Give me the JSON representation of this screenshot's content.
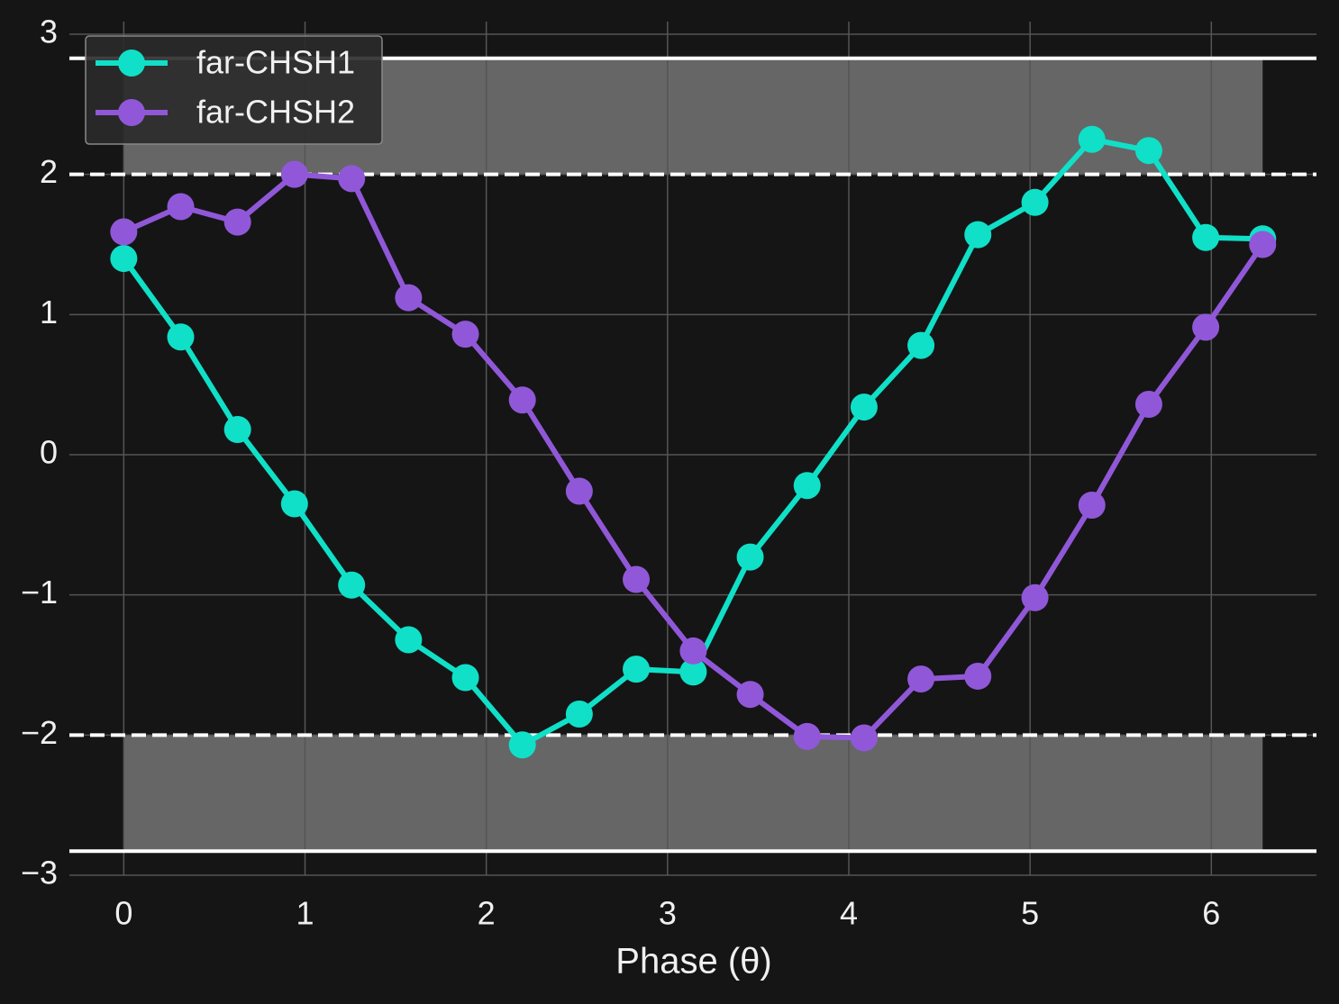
{
  "chart_data": {
    "type": "line",
    "x_label": "Phase (θ)",
    "x": [
      0,
      0.314,
      0.628,
      0.942,
      1.257,
      1.571,
      1.885,
      2.199,
      2.513,
      2.827,
      3.142,
      3.456,
      3.77,
      4.084,
      4.398,
      4.712,
      5.027,
      5.341,
      5.655,
      5.969,
      6.283
    ],
    "series": [
      {
        "name": "far-CHSH1",
        "color": "#10e0c8",
        "values": [
          1.4,
          0.84,
          0.18,
          -0.35,
          -0.93,
          -1.32,
          -1.59,
          -2.07,
          -1.85,
          -1.53,
          -1.55,
          -0.73,
          -0.22,
          0.34,
          0.78,
          1.57,
          1.8,
          2.25,
          2.17,
          1.55,
          1.54
        ]
      },
      {
        "name": "far-CHSH2",
        "color": "#9058d8",
        "values": [
          1.59,
          1.77,
          1.66,
          2.0,
          1.97,
          1.12,
          0.86,
          0.39,
          -0.26,
          -0.89,
          -1.4,
          -1.71,
          -2.01,
          -2.02,
          -1.6,
          -1.58,
          -1.02,
          -0.36,
          0.36,
          0.91,
          1.5
        ]
      }
    ],
    "bands": [
      {
        "x": [
          0,
          6.283
        ],
        "y": [
          2,
          2.828
        ],
        "color": "#666666"
      },
      {
        "x": [
          0,
          6.283
        ],
        "y": [
          -2.828,
          -2
        ],
        "color": "#666666"
      }
    ],
    "hlines": [
      {
        "y": 2.828,
        "style": "solid"
      },
      {
        "y": 2,
        "style": "dashed"
      },
      {
        "y": -2,
        "style": "dashed"
      },
      {
        "y": -2.828,
        "style": "solid"
      }
    ],
    "xlim": [
      -0.3,
      6.58
    ],
    "ylim": [
      -3,
      3
    ],
    "xticks": [
      0,
      1,
      2,
      3,
      4,
      5,
      6
    ],
    "yticks": [
      {
        "value": -3,
        "label": "−3"
      },
      {
        "value": -2,
        "label": "−2"
      },
      {
        "value": -1,
        "label": "−1"
      },
      0,
      1,
      2,
      3
    ],
    "grid": true,
    "legend": "upper left"
  }
}
